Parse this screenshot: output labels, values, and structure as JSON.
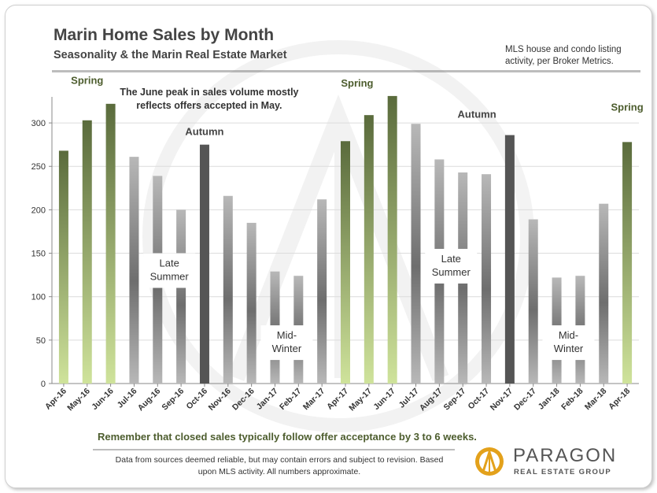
{
  "header": {
    "title": "Marin Home Sales by Month",
    "subtitle": "Seasonality & the Marin Real Estate Market",
    "note": "MLS house and condo listing activity, per Broker Metrics."
  },
  "footer": {
    "remember": "Remember that closed sales typically follow offer acceptance  by 3 to 6 weeks.",
    "disclaimer": "Data from sources deemed reliable, but may contain errors and subject to revision. Based upon MLS activity. All numbers approximate.",
    "brand": "PARAGON",
    "brand_sub": "REAL ESTATE GROUP"
  },
  "colors": {
    "spring_top": "#5a6b3c",
    "spring_bottom": "#cfe39b",
    "gray_top": "#b8b8b8",
    "gray_mid": "#6e6e6e",
    "autumn": "#555555",
    "accent_text": "#4d5d2e"
  },
  "chart_data": {
    "type": "bar",
    "categories": [
      "Apr-16",
      "May-16",
      "Jun-16",
      "Jul-16",
      "Aug-16",
      "Sep-16",
      "Oct-16",
      "Nov-16",
      "Dec-16",
      "Jan-17",
      "Feb-17",
      "Mar-17",
      "Apr-17",
      "May-17",
      "Jun-17",
      "Jul-17",
      "Aug-17",
      "Sep-17",
      "Oct-17",
      "Nov-17",
      "Dec-17",
      "Jan-18",
      "Feb-18",
      "Mar-18",
      "Apr-18"
    ],
    "values": [
      268,
      303,
      322,
      261,
      239,
      200,
      275,
      216,
      185,
      129,
      124,
      212,
      279,
      309,
      331,
      299,
      258,
      243,
      241,
      286,
      189,
      122,
      124,
      207,
      278
    ],
    "bar_styles": [
      "spring",
      "spring",
      "spring",
      "gray",
      "gray",
      "gray",
      "autumn",
      "gray",
      "gray",
      "gray",
      "gray",
      "gray",
      "spring",
      "spring",
      "spring",
      "gray",
      "gray",
      "gray",
      "gray",
      "autumn",
      "gray",
      "gray",
      "gray",
      "gray",
      "spring"
    ],
    "ylim": [
      0,
      330
    ],
    "yticks": [
      0,
      50,
      100,
      150,
      200,
      250,
      300
    ],
    "grid": true,
    "season_labels": [
      {
        "text": "Spring",
        "index": 1,
        "value": 345,
        "style": "green"
      },
      {
        "text": "Autumn",
        "index": 6,
        "value": 286,
        "style": "dark"
      },
      {
        "text": "Spring",
        "index": 12.5,
        "value": 342,
        "style": "green"
      },
      {
        "text": "Autumn",
        "index": 17.6,
        "value": 306,
        "style": "dark"
      },
      {
        "text": "Spring",
        "index": 24,
        "value": 314,
        "style": "green"
      }
    ],
    "annotation": [
      "The June peak in sales volume mostly",
      "reflects offers accepted in May."
    ],
    "boxes": [
      {
        "lines": [
          "Late",
          "Summer"
        ],
        "index": 4.5,
        "value_top": 150
      },
      {
        "lines": [
          "Mid-",
          "Winter"
        ],
        "index": 9.5,
        "value_top": 67
      },
      {
        "lines": [
          "Late",
          "Summer"
        ],
        "index": 16.5,
        "value_top": 155
      },
      {
        "lines": [
          "Mid-",
          "Winter"
        ],
        "index": 21.5,
        "value_top": 67
      }
    ]
  }
}
